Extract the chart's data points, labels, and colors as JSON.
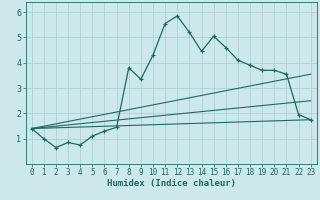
{
  "title": "",
  "xlabel": "Humidex (Indice chaleur)",
  "bg_color": "#cce8eb",
  "grid_color": "#a8cdd1",
  "line_color": "#1a6b60",
  "xlim": [
    -0.5,
    23.5
  ],
  "ylim": [
    0,
    6.4
  ],
  "xticks": [
    0,
    1,
    2,
    3,
    4,
    5,
    6,
    7,
    8,
    9,
    10,
    11,
    12,
    13,
    14,
    15,
    16,
    17,
    18,
    19,
    20,
    21,
    22,
    23
  ],
  "yticks": [
    1,
    2,
    3,
    4,
    5,
    6
  ],
  "series1_x": [
    0,
    1,
    2,
    3,
    4,
    5,
    6,
    7,
    8,
    9,
    10,
    11,
    12,
    13,
    14,
    15,
    16,
    17,
    18,
    19,
    20,
    21,
    22,
    23
  ],
  "series1_y": [
    1.4,
    1.0,
    0.65,
    0.85,
    0.75,
    1.1,
    1.3,
    1.45,
    3.8,
    3.35,
    4.3,
    5.55,
    5.85,
    5.2,
    4.45,
    5.05,
    4.6,
    4.1,
    3.9,
    3.7,
    3.7,
    3.55,
    1.95,
    1.75
  ],
  "series2_x": [
    0,
    23
  ],
  "series2_y": [
    1.4,
    1.75
  ],
  "series3_x": [
    0,
    23
  ],
  "series3_y": [
    1.4,
    3.55
  ],
  "series4_x": [
    0,
    23
  ],
  "series4_y": [
    1.4,
    2.5
  ]
}
